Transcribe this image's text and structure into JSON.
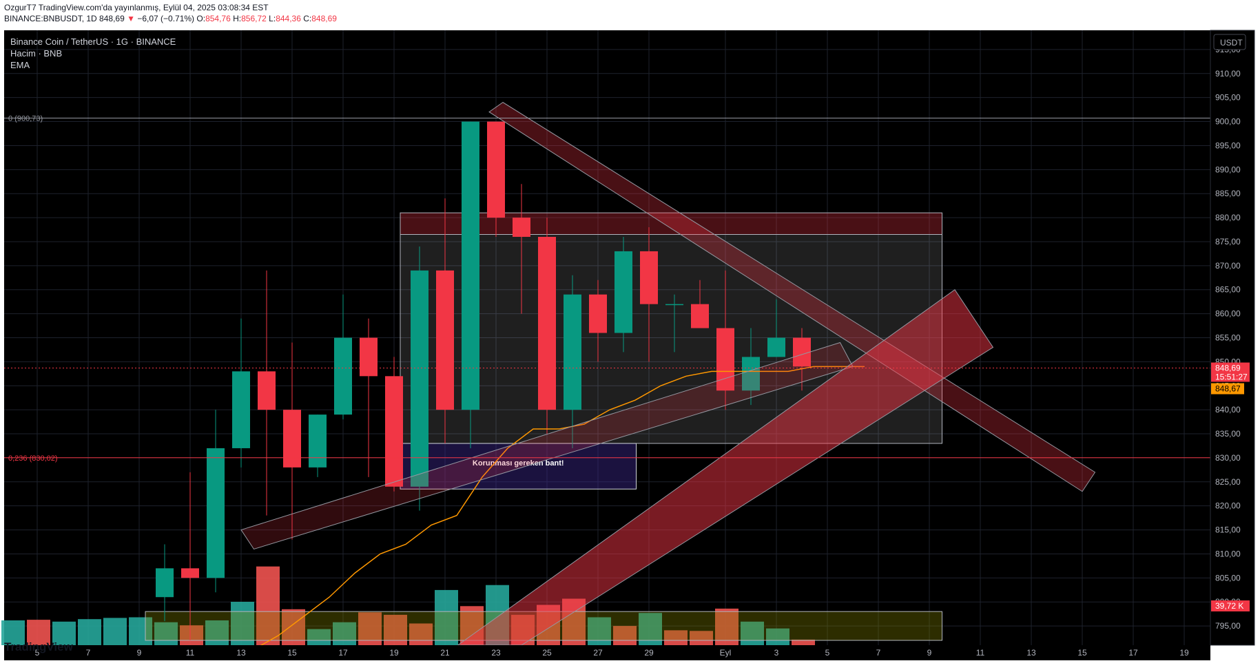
{
  "header": {
    "published": "OzgurT7 TradingView.com'da yayınlanmış, Eylül 04, 2025 03:08:34 EST",
    "symbol": "BINANCE:BNBUSDT, 1D",
    "last": "848,69",
    "arrow": "▼",
    "change": "−6,07 (−0.71%)",
    "o_label": "O:",
    "o": "854,76",
    "h_label": "H:",
    "h": "856,72",
    "l_label": "L:",
    "l": "844,36",
    "c_label": "C:",
    "c": "848,69"
  },
  "legend": {
    "title": "Binance Coin / TetherUS · 1G · BINANCE",
    "volume": "Hacim · BNB",
    "ema": "EMA"
  },
  "brand": "TradingView",
  "colors": {
    "up": "#089981",
    "down": "#f23645",
    "ema": "#ff9800",
    "bg": "#000000",
    "axis": "#b2b5be"
  },
  "chart_data": {
    "type": "candlestick",
    "ylim": [
      791,
      919
    ],
    "y_ticks": [
      "795,00",
      "800,00",
      "805,00",
      "810,00",
      "815,00",
      "820,00",
      "825,00",
      "830,00",
      "835,00",
      "840,00",
      "845,00",
      "850,00",
      "855,00",
      "860,00",
      "865,00",
      "870,00",
      "875,00",
      "880,00",
      "885,00",
      "890,00",
      "895,00",
      "900,00",
      "905,00",
      "910,00",
      "915,00"
    ],
    "x_ticks": [
      "5",
      "7",
      "9",
      "11",
      "13",
      "15",
      "17",
      "19",
      "21",
      "23",
      "25",
      "27",
      "29",
      "Eyl",
      "3",
      "5",
      "7",
      "9",
      "11",
      "13",
      "15",
      "17",
      "19"
    ],
    "price_unit": "USDT",
    "candles": [
      {
        "d": "10",
        "o": 801,
        "h": 812,
        "l": 796,
        "c": 807
      },
      {
        "d": "11",
        "o": 807,
        "h": 827,
        "l": 792,
        "c": 805
      },
      {
        "d": "12",
        "o": 805,
        "h": 840,
        "l": 802,
        "c": 832
      },
      {
        "d": "13",
        "o": 832,
        "h": 859,
        "l": 828,
        "c": 848
      },
      {
        "d": "14",
        "o": 848,
        "h": 869,
        "l": 818,
        "c": 840
      },
      {
        "d": "15",
        "o": 840,
        "h": 854,
        "l": 813,
        "c": 828
      },
      {
        "d": "16",
        "o": 828,
        "h": 839,
        "l": 826,
        "c": 839
      },
      {
        "d": "17",
        "o": 839,
        "h": 864,
        "l": 838,
        "c": 855
      },
      {
        "d": "18",
        "o": 855,
        "h": 859,
        "l": 826,
        "c": 847
      },
      {
        "d": "19",
        "o": 847,
        "h": 851,
        "l": 823,
        "c": 824
      },
      {
        "d": "20",
        "o": 824,
        "h": 874,
        "l": 819,
        "c": 869
      },
      {
        "d": "21",
        "o": 869,
        "h": 884,
        "l": 833,
        "c": 840
      },
      {
        "d": "22",
        "o": 840,
        "h": 900,
        "l": 832,
        "c": 900
      },
      {
        "d": "23",
        "o": 900,
        "h": 900,
        "l": 876,
        "c": 880
      },
      {
        "d": "24",
        "o": 880,
        "h": 887,
        "l": 860,
        "c": 876
      },
      {
        "d": "25",
        "o": 876,
        "h": 880,
        "l": 835,
        "c": 840
      },
      {
        "d": "26",
        "o": 840,
        "h": 868,
        "l": 832,
        "c": 864
      },
      {
        "d": "27",
        "o": 864,
        "h": 867,
        "l": 850,
        "c": 856
      },
      {
        "d": "28",
        "o": 856,
        "h": 876,
        "l": 852,
        "c": 873
      },
      {
        "d": "29",
        "o": 873,
        "h": 878,
        "l": 850,
        "c": 862
      },
      {
        "d": "30",
        "o": 862,
        "h": 864,
        "l": 852,
        "c": 862
      },
      {
        "d": "31",
        "o": 862,
        "h": 867,
        "l": 857,
        "c": 857
      },
      {
        "d": "Eyl",
        "o": 857,
        "h": 869,
        "l": 840,
        "c": 844
      },
      {
        "d": "2",
        "o": 844,
        "h": 857,
        "l": 841,
        "c": 851
      },
      {
        "d": "3",
        "o": 851,
        "h": 863,
        "l": 851,
        "c": 855
      },
      {
        "d": "4",
        "o": 855,
        "h": 857,
        "l": 844,
        "c": 849
      }
    ],
    "ema": [
      790,
      793,
      797,
      801,
      806,
      810,
      812,
      816,
      818,
      826,
      832,
      836,
      836,
      837,
      840,
      842,
      845,
      847,
      848,
      848,
      848,
      848,
      849,
      849,
      849
    ],
    "volume_bars": [
      {
        "v": 0.4,
        "up": true
      },
      {
        "v": 0.41,
        "up": false
      },
      {
        "v": 0.38,
        "up": true
      },
      {
        "v": 0.42,
        "up": true
      },
      {
        "v": 0.44,
        "up": true
      },
      {
        "v": 0.45,
        "up": true
      },
      {
        "v": 0.37,
        "up": true
      },
      {
        "v": 0.32,
        "up": false
      },
      {
        "v": 0.4,
        "up": true
      },
      {
        "v": 0.7,
        "up": true
      },
      {
        "v": 1.27,
        "up": false
      },
      {
        "v": 0.58,
        "up": false
      },
      {
        "v": 0.26,
        "up": true
      },
      {
        "v": 0.37,
        "up": true
      },
      {
        "v": 0.53,
        "up": false
      },
      {
        "v": 0.49,
        "up": false
      },
      {
        "v": 0.35,
        "up": false
      },
      {
        "v": 0.89,
        "up": true
      },
      {
        "v": 0.63,
        "up": false
      },
      {
        "v": 0.97,
        "up": true
      },
      {
        "v": 0.49,
        "up": false
      },
      {
        "v": 0.65,
        "up": false
      },
      {
        "v": 0.75,
        "up": false
      },
      {
        "v": 0.45,
        "up": true
      },
      {
        "v": 0.31,
        "up": false
      },
      {
        "v": 0.52,
        "up": true
      },
      {
        "v": 0.24,
        "up": false
      },
      {
        "v": 0.23,
        "up": false
      },
      {
        "v": 0.59,
        "up": false
      },
      {
        "v": 0.38,
        "up": true
      },
      {
        "v": 0.27,
        "up": true
      },
      {
        "v": 0.09,
        "up": false
      }
    ],
    "fib_levels": [
      {
        "label": "0 (900,73)",
        "price": 900.73
      },
      {
        "label": "0,236 (830,02)",
        "price": 830.02
      }
    ],
    "current_price": {
      "value": "848,69",
      "countdown": "15:51:27",
      "price": 848.69
    },
    "ema_label": "848,67",
    "volume_label": "39,72 K",
    "annotation": "Korunması gereken bant!"
  }
}
